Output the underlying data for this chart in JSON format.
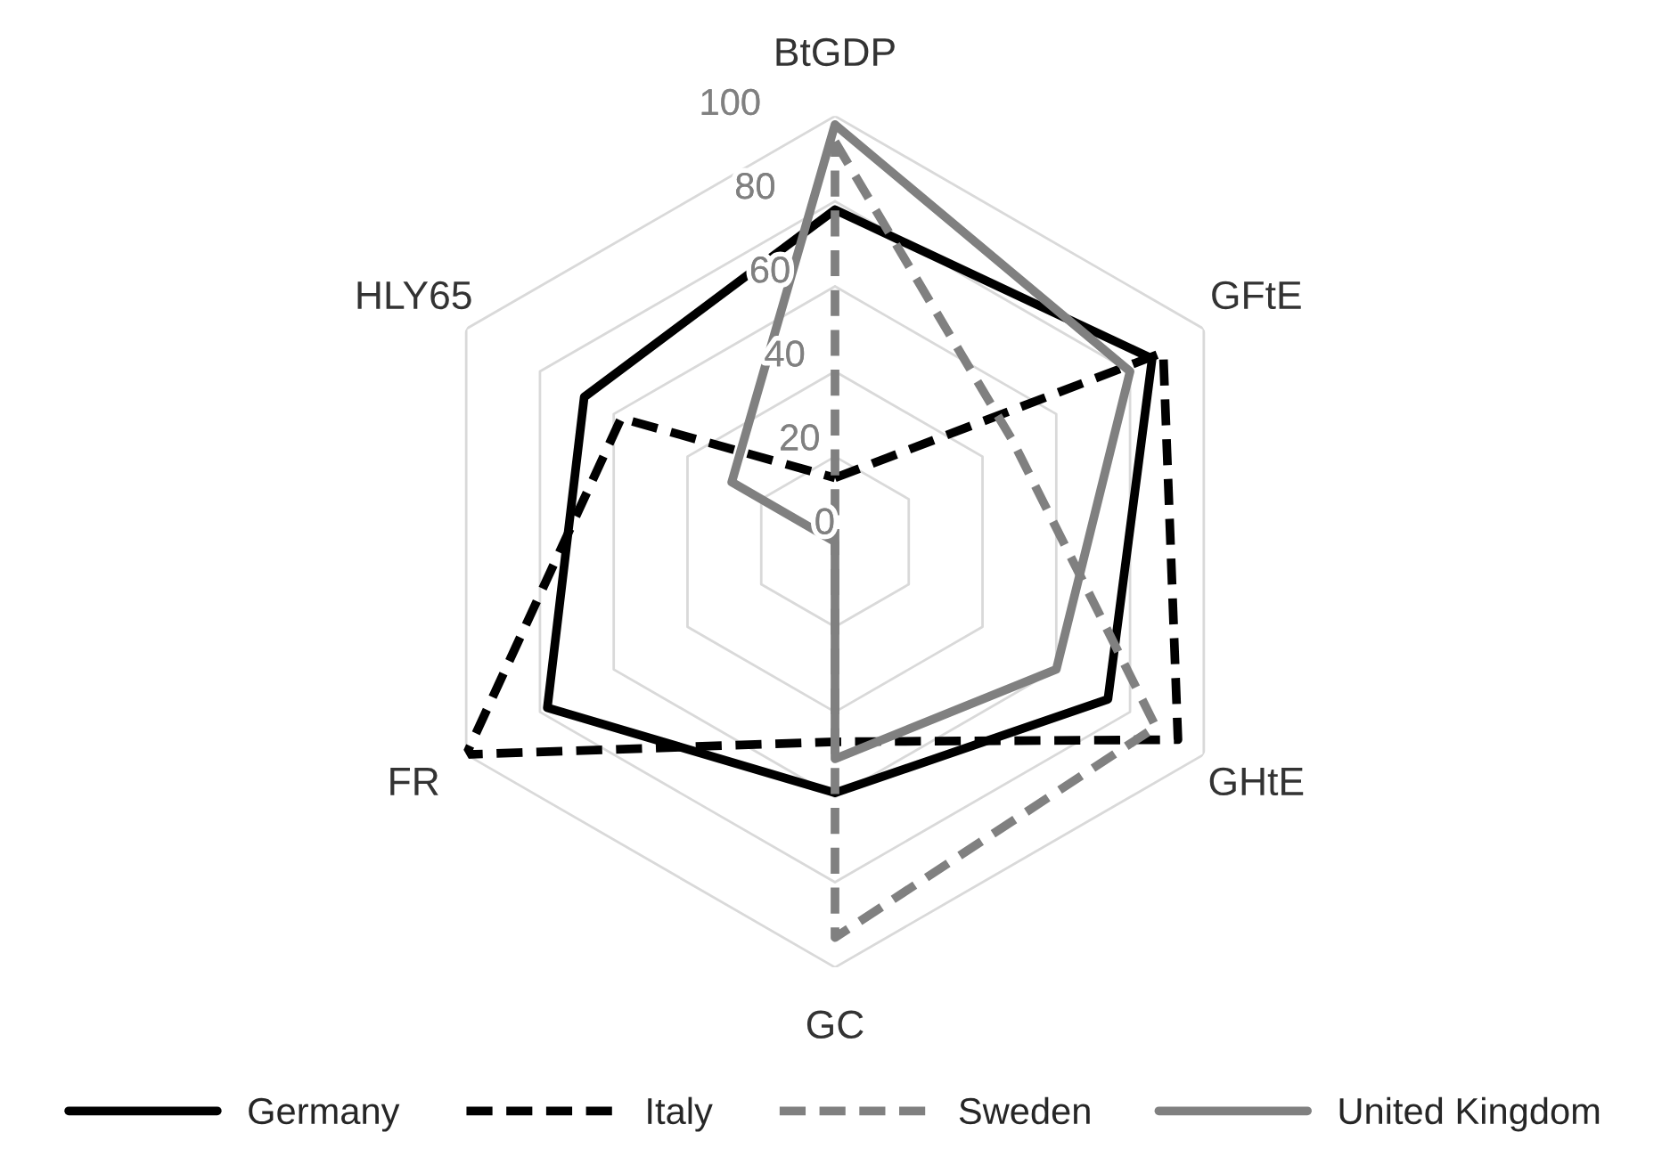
{
  "chart_data": {
    "type": "radar",
    "categories": [
      "BtGDP",
      "GFtE",
      "GHtE",
      "GC",
      "FR",
      "HLY65"
    ],
    "ylim": [
      0,
      100
    ],
    "yticks": [
      0,
      20,
      40,
      60,
      80,
      100
    ],
    "grid": true,
    "legend": "bottom",
    "series": [
      {
        "name": "Germany",
        "color": "#000000",
        "line_style": "solid",
        "values": [
          78,
          86,
          74,
          59,
          78,
          68
        ]
      },
      {
        "name": "Italy",
        "color": "#000000",
        "line_style": "dashed",
        "values": [
          15,
          89,
          93,
          47,
          100,
          58
        ]
      },
      {
        "name": "Sweden",
        "color": "#808080",
        "line_style": "dashed",
        "values": [
          94,
          48,
          87,
          93,
          0,
          0
        ]
      },
      {
        "name": "United Kingdom",
        "color": "#808080",
        "line_style": "solid",
        "values": [
          98,
          80,
          60,
          51,
          0,
          28
        ]
      }
    ]
  }
}
